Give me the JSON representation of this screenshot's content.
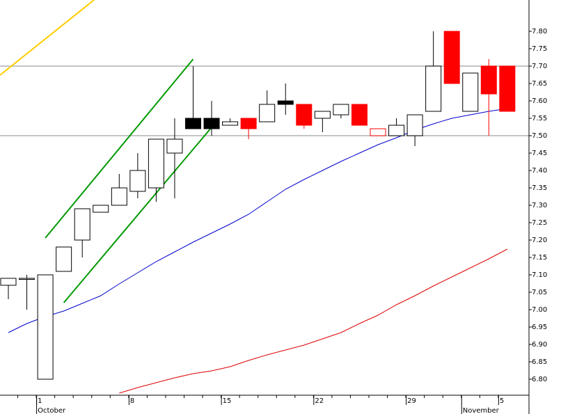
{
  "chart_data": {
    "type": "candlestick",
    "categories": [
      null,
      null,
      "1",
      null,
      null,
      null,
      null,
      "8",
      null,
      null,
      null,
      null,
      "15",
      null,
      null,
      null,
      null,
      "22",
      null,
      null,
      null,
      null,
      "29",
      null,
      null,
      null,
      null,
      "5"
    ],
    "months": [
      {
        "label": "October",
        "index": 2
      },
      {
        "label": "November",
        "index": 25
      }
    ],
    "open": [
      7.07,
      7.09,
      6.8,
      7.11,
      7.2,
      7.28,
      7.3,
      7.34,
      7.35,
      7.45,
      7.55,
      7.55,
      7.53,
      7.55,
      7.54,
      7.6,
      7.59,
      7.55,
      7.56,
      7.59,
      7.52,
      7.5,
      7.5,
      7.57,
      7.8,
      7.57,
      7.7,
      7.7
    ],
    "high": [
      7.09,
      7.1,
      7.1,
      7.18,
      7.29,
      7.3,
      7.39,
      7.45,
      7.49,
      7.55,
      7.7,
      7.6,
      7.55,
      7.55,
      7.63,
      7.65,
      7.59,
      7.57,
      7.59,
      7.59,
      7.52,
      7.55,
      7.56,
      7.8,
      7.8,
      7.68,
      7.72,
      7.7
    ],
    "low": [
      7.03,
      7.0,
      6.8,
      7.11,
      7.15,
      7.28,
      7.3,
      7.32,
      7.31,
      7.32,
      7.52,
      7.5,
      7.53,
      7.49,
      7.54,
      7.56,
      7.52,
      7.51,
      7.55,
      7.53,
      7.5,
      7.5,
      7.47,
      7.57,
      7.65,
      7.57,
      7.5,
      7.57
    ],
    "close": [
      7.09,
      7.09,
      7.1,
      7.18,
      7.29,
      7.3,
      7.35,
      7.4,
      7.49,
      7.49,
      7.52,
      7.52,
      7.54,
      7.52,
      7.59,
      7.59,
      7.53,
      7.57,
      7.59,
      7.53,
      7.5,
      7.53,
      7.56,
      7.7,
      7.65,
      7.68,
      7.62,
      7.57
    ],
    "candle_colors": [
      "#ffffff",
      "#ffffff",
      "#ffffff",
      "#ffffff",
      "#ffffff",
      "#ffffff",
      "#ffffff",
      "#ffffff",
      "#ffffff",
      "#ffffff",
      "#000000",
      "#000000",
      "#ffffff",
      "#ff0000",
      "#ffffff",
      "#000000",
      "#ff0000",
      "#ffffff",
      "#ffffff",
      "#ff0000",
      "#ffffff",
      "#ffffff",
      "#ffffff",
      "#ffffff",
      "#ff0000",
      "#ffffff",
      "#ff0000",
      "#ff0000"
    ],
    "candle_outline": [
      "#000000",
      "#000000",
      "#000000",
      "#000000",
      "#000000",
      "#000000",
      "#000000",
      "#000000",
      "#000000",
      "#000000",
      "#000000",
      "#000000",
      "#000000",
      "#ff0000",
      "#000000",
      "#000000",
      "#ff0000",
      "#000000",
      "#000000",
      "#ff0000",
      "#ff0000",
      "#000000",
      "#000000",
      "#000000",
      "#ff0000",
      "#000000",
      "#ff0000",
      "#ff0000"
    ],
    "series": [
      {
        "color": "#0000cc",
        "values": [
          6.934,
          6.96,
          6.98,
          6.996,
          7.018,
          7.04,
          7.074,
          7.106,
          7.138,
          7.166,
          7.194,
          7.22,
          7.246,
          7.274,
          7.31,
          7.346,
          7.374,
          7.4,
          7.426,
          7.45,
          7.474,
          7.494,
          7.516,
          7.534,
          7.55,
          7.56,
          7.57,
          7.578
        ]
      },
      {
        "color": "#dd0000",
        "values": [
          null,
          null,
          null,
          null,
          null,
          null,
          6.76,
          6.776,
          6.79,
          6.804,
          6.816,
          6.824,
          6.836,
          6.854,
          6.87,
          6.884,
          6.898,
          6.916,
          6.934,
          6.96,
          6.984,
          7.014,
          7.04,
          7.068,
          7.094,
          7.12,
          7.146,
          7.174
        ]
      }
    ],
    "trend_lines": [
      {
        "color": "#009900",
        "x": [
          2,
          10
        ],
        "values": [
          7.206,
          7.72
        ]
      },
      {
        "color": "#009900",
        "x": [
          3,
          11
        ],
        "values": [
          7.02,
          7.524
        ]
      },
      {
        "color": "#ffcc00",
        "x": [
          -0.45,
          4.63
        ],
        "values": [
          7.674,
          7.89
        ]
      }
    ],
    "hlines": [
      7.7,
      7.5
    ],
    "ylim": [
      6.754,
      7.89
    ],
    "yticks": [
      {
        "value": 6.8,
        "label": "6.80"
      },
      {
        "value": 6.85,
        "label": "6.85"
      },
      {
        "value": 6.9,
        "label": "6.90"
      },
      {
        "value": 6.95,
        "label": "6.95"
      },
      {
        "value": 7.0,
        "label": "7.00"
      },
      {
        "value": 7.05,
        "label": "7.05"
      },
      {
        "value": 7.1,
        "label": "7.10"
      },
      {
        "value": 7.15,
        "label": "7.15"
      },
      {
        "value": 7.2,
        "label": "7.20"
      },
      {
        "value": 7.25,
        "label": "7.25"
      },
      {
        "value": 7.3,
        "label": "7.30"
      },
      {
        "value": 7.35,
        "label": "7.35"
      },
      {
        "value": 7.4,
        "label": "7.40"
      },
      {
        "value": 7.45,
        "label": "7.45"
      },
      {
        "value": 7.5,
        "label": "7.50"
      },
      {
        "value": 7.55,
        "label": "7.55"
      },
      {
        "value": 7.6,
        "label": "7.60"
      },
      {
        "value": 7.65,
        "label": "7.65"
      },
      {
        "value": 7.7,
        "label": "7.70"
      },
      {
        "value": 7.75,
        "label": "7.75"
      },
      {
        "value": 7.8,
        "label": "7.80"
      }
    ]
  }
}
